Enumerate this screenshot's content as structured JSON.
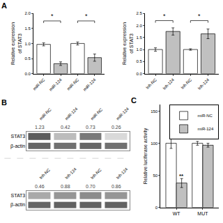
{
  "chart_data": [
    {
      "type": "bar",
      "title": "A",
      "categories": [
        "miR-NC",
        "miR-124",
        "miR-NC",
        "miR-124"
      ],
      "values": [
        0.97,
        0.33,
        1.0,
        0.53
      ],
      "errors": [
        0.05,
        0.06,
        0.05,
        0.12
      ],
      "colors": [
        "white",
        "#c0c0c0",
        "white",
        "#c0c0c0"
      ],
      "ylabel": "Relative expression\nof STAT3",
      "ylim": [
        0,
        2.0
      ],
      "yticks": [
        {
          "value": 0,
          "label": "0.0"
        },
        0.5,
        {
          "value": 1,
          "label": "1.0"
        },
        1.5,
        {
          "value": 2,
          "label": "2.0"
        }
      ],
      "annotations": [
        {
          "text": "*",
          "x": [
            0,
            1
          ],
          "y": 1.75
        },
        {
          "text": "*",
          "x": [
            2,
            3
          ],
          "y": 1.75
        }
      ],
      "grid": false
    },
    {
      "type": "bar",
      "categories": [
        "Inh-NC",
        "Inh-124",
        "Inh-NC",
        "Inh-124"
      ],
      "values": [
        1.0,
        1.75,
        1.0,
        1.65
      ],
      "errors": [
        0.07,
        0.15,
        0.03,
        0.2
      ],
      "colors": [
        "white",
        "#c0c0c0",
        "white",
        "#c0c0c0"
      ],
      "ylabel": "Relative expression\nof STAT3",
      "ylim": [
        0,
        2.5
      ],
      "yticks": [
        {
          "value": 0,
          "label": "0.0"
        },
        0.5,
        {
          "value": 1,
          "label": "1.0"
        },
        1.5,
        {
          "value": 2,
          "label": "2.0"
        },
        2.5
      ],
      "annotations": [
        {
          "text": "*",
          "x": [
            0,
            1
          ],
          "y": 2.2
        },
        {
          "text": "*",
          "x": [
            2,
            3
          ],
          "y": 2.2
        }
      ],
      "grid": false
    },
    {
      "type": "heatmap",
      "title": "B",
      "categories": [
        "miR-NC",
        "miR-124",
        "miR-NC",
        "miR-124"
      ],
      "rows": [
        "STAT3",
        "β-actin"
      ],
      "cells": [
        [
          0.85,
          0.35,
          0.7,
          0.2
        ],
        [
          0.8,
          0.75,
          0.8,
          0.75
        ]
      ],
      "zlim": [
        0,
        1
      ],
      "values": [
        1.23,
        0.42,
        0.73,
        0.26
      ],
      "value_labels": [
        "1.23",
        "0.42",
        "0.73",
        "0.26"
      ]
    },
    {
      "type": "heatmap",
      "categories": [
        "Inh-NC",
        "Inh-124",
        "Inh-NC",
        "Inh-124"
      ],
      "rows": [
        "STAT3",
        "β-actin"
      ],
      "cells": [
        [
          0.45,
          0.55,
          0.6,
          0.55
        ],
        [
          0.8,
          0.82,
          0.82,
          0.82
        ]
      ],
      "zlim": [
        0,
        1
      ],
      "values": [
        0.46,
        0.88,
        0.7,
        0.86
      ],
      "value_labels": [
        "0.46",
        "0.88",
        "0.70",
        "0.86"
      ]
    },
    {
      "type": "bar",
      "title": "C",
      "categories": [
        "WT",
        "MUT"
      ],
      "series": [
        {
          "name": "miR-NC",
          "color": "white",
          "values": [
            100,
            100
          ],
          "errors": [
            8,
            3
          ]
        },
        {
          "name": "miR-124",
          "color": "#c0c0c0",
          "values": [
            38,
            97
          ],
          "errors": [
            7,
            3
          ]
        }
      ],
      "ylabel": "Relative luciferase activity",
      "ylim": [
        0,
        160
      ],
      "yticks": [
        0,
        50,
        100,
        150
      ],
      "annotations": [
        {
          "text": "**",
          "x": 0,
          "series": "miR-124",
          "y": 42
        }
      ],
      "legend": "upper right",
      "grid": false
    }
  ]
}
